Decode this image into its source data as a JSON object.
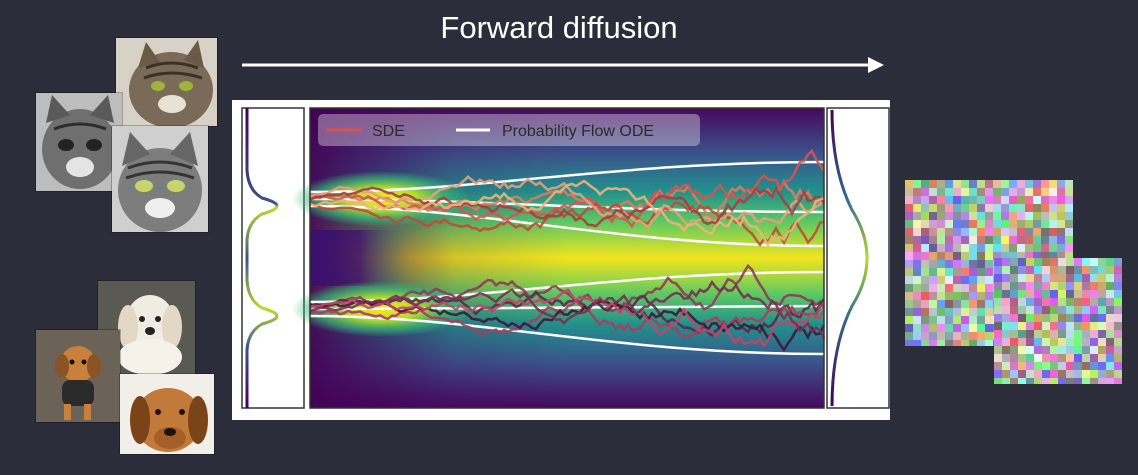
{
  "slide": {
    "title": "Forward diffusion"
  },
  "legend": {
    "sde_label": "SDE",
    "ode_label": "Probability Flow ODE"
  },
  "colors": {
    "background": "#2b2e3a",
    "title": "#ffffff",
    "sde": "#d9534f",
    "ode": "#ffffff"
  },
  "images": {
    "data_group_top": [
      "cat-photo",
      "cat-photo",
      "cat-photo"
    ],
    "data_group_bottom": [
      "dog-photo",
      "dog-photo",
      "dog-photo"
    ],
    "noise_group": [
      "noise-image",
      "noise-image"
    ]
  }
}
